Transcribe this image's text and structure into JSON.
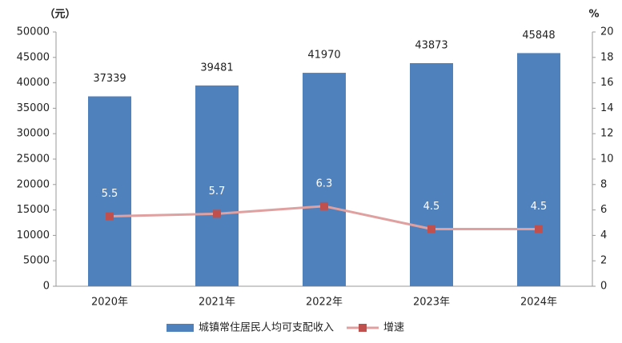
{
  "chart_data": {
    "type": "bar",
    "y_label": "（元）",
    "y2_label": "%",
    "categories": [
      "2020年",
      "2021年",
      "2022年",
      "2023年",
      "2024年"
    ],
    "series": [
      {
        "name": "城镇常住居民人均可支配收入",
        "type": "bar",
        "color": "#4f81bd",
        "values": [
          37339,
          39481,
          41970,
          43873,
          45848
        ]
      },
      {
        "name": "增速",
        "type": "line",
        "axis": "y2",
        "color": "#c0504d",
        "line_color": "#e0a0a0",
        "values": [
          5.5,
          5.7,
          6.3,
          4.5,
          4.5
        ]
      }
    ],
    "ylim": [
      0,
      50000
    ],
    "yticks": [
      0,
      5000,
      10000,
      15000,
      20000,
      25000,
      30000,
      35000,
      40000,
      45000,
      50000
    ],
    "y2lim": [
      0,
      20
    ],
    "y2ticks": [
      0,
      2,
      4,
      6,
      8,
      10,
      12,
      14,
      16,
      18,
      20
    ],
    "grid": false,
    "legend": "bottom"
  }
}
